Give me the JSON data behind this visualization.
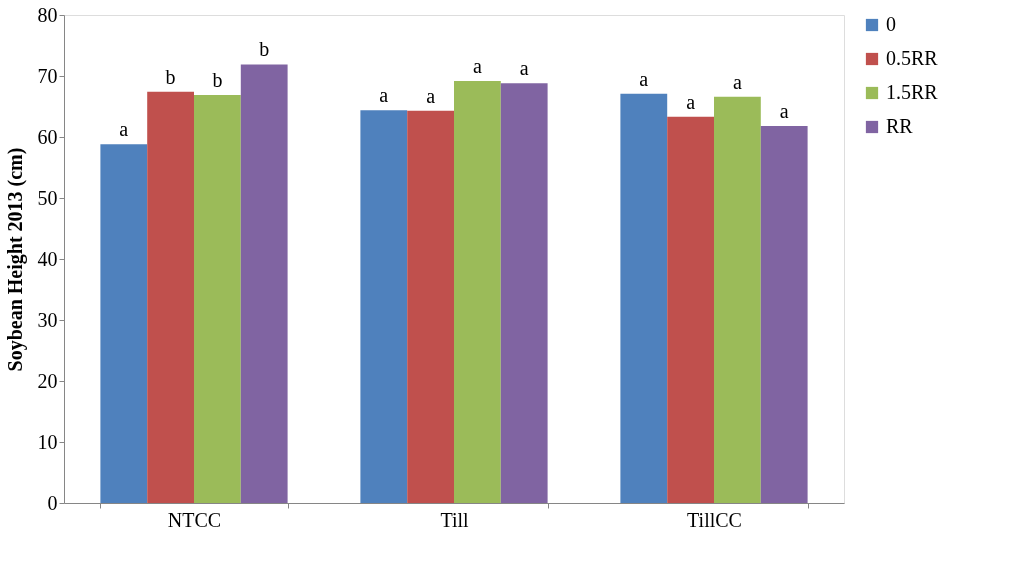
{
  "chart_data": {
    "type": "bar",
    "ylabel": "Soybean Height 2013 (cm)",
    "categories": [
      "NTCC",
      "Till",
      "TillCC"
    ],
    "series": [
      {
        "name": "0",
        "color": "#4f81bd",
        "values": [
          58.8,
          64.4,
          67.1
        ],
        "value_labels": [
          "a",
          "a",
          "a"
        ]
      },
      {
        "name": "0.5RR",
        "color": "#c0504d",
        "values": [
          67.4,
          64.3,
          63.3
        ],
        "value_labels": [
          "b",
          "a",
          "a"
        ]
      },
      {
        "name": "1.5RR",
        "color": "#9bbb59",
        "values": [
          66.9,
          69.2,
          66.6
        ],
        "value_labels": [
          "b",
          "a",
          "a"
        ]
      },
      {
        "name": "RR",
        "color": "#8064a2",
        "values": [
          71.9,
          68.8,
          61.8
        ],
        "value_labels": [
          "b",
          "a",
          "a"
        ]
      }
    ],
    "ylim": [
      0,
      80
    ],
    "yticks": [
      0,
      10,
      20,
      30,
      40,
      50,
      60,
      70,
      80
    ],
    "grid": false,
    "legend": "right"
  }
}
